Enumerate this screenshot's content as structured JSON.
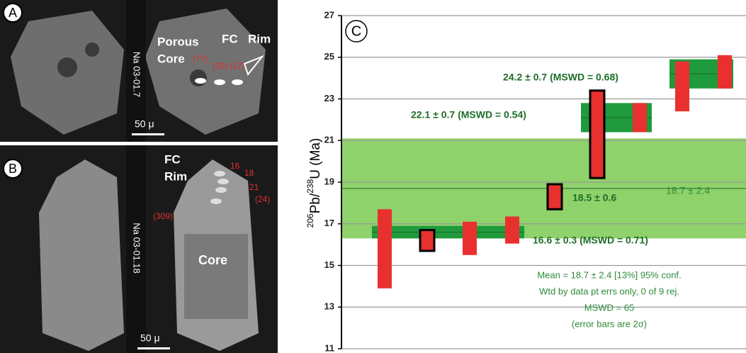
{
  "panels": {
    "a": {
      "letter": "A",
      "label1": [
        "Porous",
        "Core"
      ],
      "label2": [
        "FC",
        "Rim"
      ],
      "spots": [
        "(77)",
        "(39)",
        "(17)"
      ],
      "sample": "Na 03-01.7",
      "scale": "50 μ"
    },
    "b": {
      "letter": "B",
      "label1": [
        "FC",
        "Rim"
      ],
      "spots": [
        "16",
        "18",
        "21",
        "(24)",
        "(309)"
      ],
      "core": "Core",
      "sample": "Na 03-01.18",
      "scale": "50 μ"
    }
  },
  "chart_data": {
    "type": "errorbar",
    "panel": "C",
    "ylabel": [
      "206",
      "Pb/",
      "238",
      "U (Ma)"
    ],
    "categories": [
      null,
      null,
      null,
      null,
      null,
      null,
      null,
      null,
      null
    ],
    "series": [
      {
        "color": "#e8312f",
        "values": [
          15.8,
          16.2,
          16.3,
          16.7,
          18.3,
          21.3,
          22.1,
          23.6,
          24.3
        ],
        "errors": [
          1.9,
          0.5,
          0.8,
          0.65,
          0.6,
          2.1,
          0.7,
          1.2,
          0.8
        ],
        "outlined": [
          false,
          true,
          false,
          false,
          true,
          true,
          false,
          false,
          false
        ]
      }
    ],
    "bands": [
      {
        "value": 18.7,
        "error": 2.4,
        "label": "18.7 ± 2.4",
        "color": "#8fd16a"
      },
      {
        "value": 16.6,
        "error": 0.3,
        "label": "16.6 ± 0.3 (MSWD = 0.71)",
        "color": "#1f9a3c"
      },
      {
        "value": 22.1,
        "error": 0.7,
        "label": "22.1 ± 0.7 (MSWD = 0.54)",
        "color": "#1f9a3c"
      },
      {
        "value": 24.2,
        "error": 0.7,
        "label": "24.2 ± 0.7 (MSWD = 0.68)",
        "color": "#1f9a3c"
      }
    ],
    "annotations": [
      "18.5 ± 0.6"
    ],
    "summary": [
      "Mean = 18.7 ± 2.4  [13%]  95% conf.",
      "Wtd by data pt errs only, 0 of 9 rej.",
      "MSWD = 65",
      "(error bars are 2σ)"
    ],
    "ylim": [
      11,
      27
    ],
    "yticks": [
      11,
      13,
      15,
      17,
      19,
      21,
      23,
      25,
      27
    ],
    "grid": true
  }
}
